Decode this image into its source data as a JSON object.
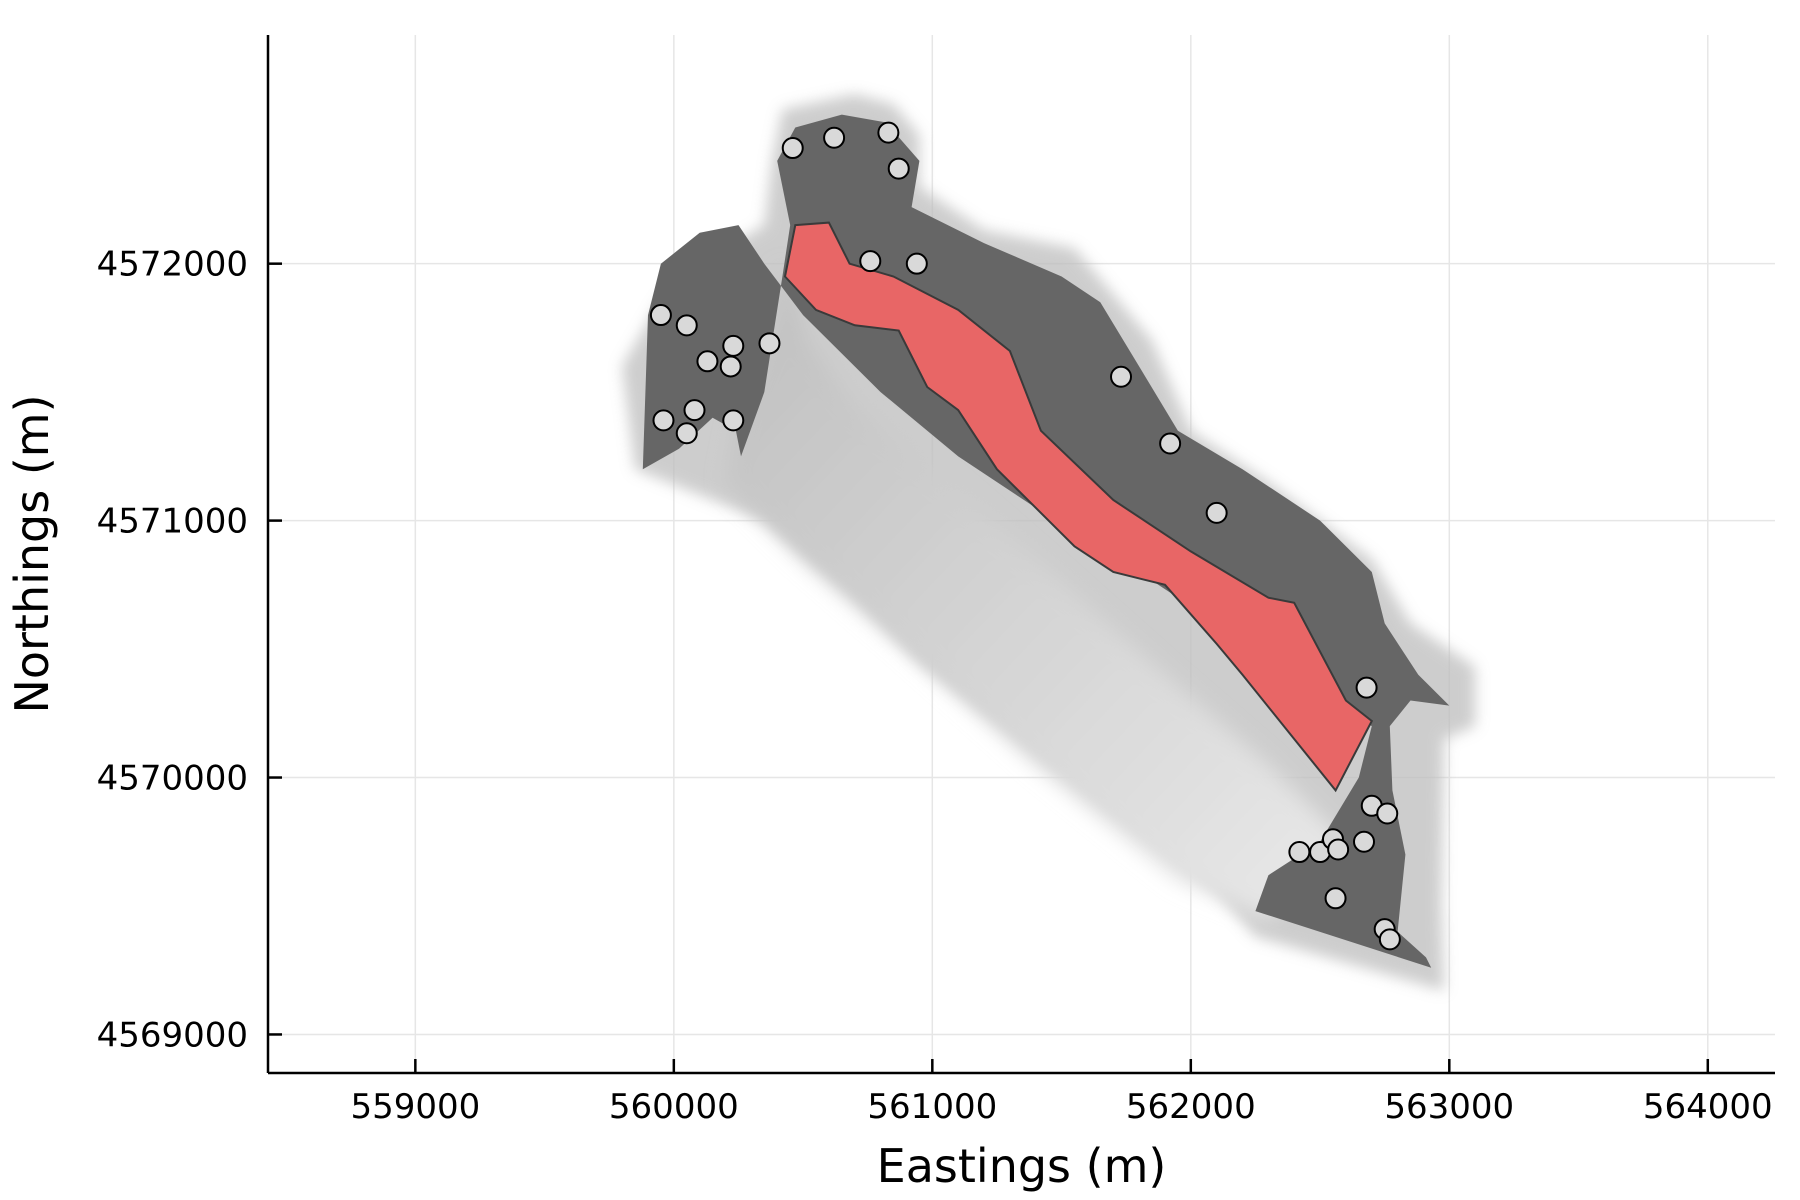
{
  "chart_data": {
    "type": "scatter",
    "title": "",
    "xlabel": "Eastings (m)",
    "ylabel": "Northings (m)",
    "xlim": [
      558430,
      564260
    ],
    "ylim": [
      4568850,
      4572890
    ],
    "xticks": [
      559000,
      560000,
      561000,
      562000,
      563000,
      564000
    ],
    "yticks": [
      4569000,
      4570000,
      4571000,
      4572000
    ],
    "xtick_labels": [
      "559000",
      "560000",
      "561000",
      "562000",
      "563000",
      "564000"
    ],
    "ytick_labels": [
      "4569000",
      "4570000",
      "4571000",
      "4572000"
    ],
    "grid": true,
    "legend": "none",
    "colors": {
      "outer_halo": "#bdbdbd",
      "region": "#666666",
      "gradient_zone": "#d6d6d6",
      "core_zone": "#e86666",
      "core_outline": "#3a3a3a",
      "wells": "#d9d9d9"
    },
    "regions": {
      "halo": [
        [
          560420,
          4572600
        ],
        [
          560700,
          4572660
        ],
        [
          560850,
          4572620
        ],
        [
          560950,
          4572500
        ],
        [
          560950,
          4572300
        ],
        [
          561200,
          4572130
        ],
        [
          561550,
          4572060
        ],
        [
          561850,
          4571700
        ],
        [
          562000,
          4571350
        ],
        [
          562300,
          4571150
        ],
        [
          562700,
          4570850
        ],
        [
          562850,
          4570600
        ],
        [
          563100,
          4570430
        ],
        [
          563100,
          4570200
        ],
        [
          562980,
          4570150
        ],
        [
          562970,
          4569500
        ],
        [
          562980,
          4569170
        ],
        [
          562250,
          4569380
        ],
        [
          562100,
          4569550
        ],
        [
          561650,
          4569900
        ],
        [
          560950,
          4570450
        ],
        [
          560700,
          4570700
        ],
        [
          560350,
          4571000
        ],
        [
          559850,
          4571200
        ],
        [
          559800,
          4571600
        ],
        [
          559950,
          4571860
        ],
        [
          560150,
          4572030
        ],
        [
          560350,
          4572150
        ],
        [
          560380,
          4572400
        ]
      ],
      "zone": [
        [
          560470,
          4572530
        ],
        [
          560650,
          4572580
        ],
        [
          560820,
          4572550
        ],
        [
          560950,
          4572400
        ],
        [
          560920,
          4572220
        ],
        [
          561200,
          4572080
        ],
        [
          561500,
          4571950
        ],
        [
          561650,
          4571850
        ],
        [
          561800,
          4571600
        ],
        [
          561950,
          4571350
        ],
        [
          562200,
          4571200
        ],
        [
          562500,
          4571000
        ],
        [
          562700,
          4570800
        ],
        [
          562750,
          4570600
        ],
        [
          562880,
          4570400
        ],
        [
          563000,
          4570280
        ],
        [
          562850,
          4570300
        ],
        [
          562770,
          4570200
        ],
        [
          562780,
          4569950
        ],
        [
          562830,
          4569700
        ],
        [
          562800,
          4569400
        ],
        [
          562910,
          4569300
        ],
        [
          562930,
          4569260
        ],
        [
          562250,
          4569480
        ],
        [
          562300,
          4569620
        ],
        [
          562500,
          4569750
        ],
        [
          562650,
          4570000
        ],
        [
          562700,
          4570200
        ],
        [
          562400,
          4570400
        ],
        [
          562100,
          4570600
        ],
        [
          561800,
          4570800
        ],
        [
          561400,
          4571050
        ],
        [
          561100,
          4571250
        ],
        [
          560800,
          4571500
        ],
        [
          560500,
          4571800
        ],
        [
          560350,
          4572000
        ],
        [
          560250,
          4572150
        ],
        [
          560100,
          4572120
        ],
        [
          559950,
          4572000
        ],
        [
          559900,
          4571800
        ],
        [
          559880,
          4571200
        ],
        [
          560020,
          4571280
        ],
        [
          560150,
          4571400
        ],
        [
          560240,
          4571350
        ],
        [
          560260,
          4571250
        ],
        [
          560350,
          4571500
        ],
        [
          560420,
          4571950
        ],
        [
          560450,
          4572150
        ],
        [
          560400,
          4572400
        ]
      ],
      "gradient": [
        [
          560420,
          4572000
        ],
        [
          560520,
          4571700
        ],
        [
          560700,
          4571450
        ],
        [
          561000,
          4571200
        ],
        [
          561400,
          4570850
        ],
        [
          561900,
          4570400
        ],
        [
          562300,
          4570050
        ],
        [
          562600,
          4569750
        ],
        [
          562300,
          4569450
        ],
        [
          561950,
          4569600
        ],
        [
          561400,
          4570050
        ],
        [
          560900,
          4570500
        ],
        [
          560500,
          4570850
        ],
        [
          560200,
          4571150
        ],
        [
          560250,
          4571400
        ],
        [
          560380,
          4571750
        ]
      ],
      "core": [
        [
          560470,
          4572150
        ],
        [
          560600,
          4572160
        ],
        [
          560680,
          4572000
        ],
        [
          560850,
          4571950
        ],
        [
          561100,
          4571820
        ],
        [
          561300,
          4571660
        ],
        [
          561420,
          4571350
        ],
        [
          561700,
          4571080
        ],
        [
          562000,
          4570880
        ],
        [
          562300,
          4570700
        ],
        [
          562400,
          4570680
        ],
        [
          562600,
          4570300
        ],
        [
          562700,
          4570220
        ],
        [
          562560,
          4569950
        ],
        [
          562400,
          4570150
        ],
        [
          562200,
          4570400
        ],
        [
          562100,
          4570520
        ],
        [
          561900,
          4570750
        ],
        [
          561700,
          4570800
        ],
        [
          561550,
          4570900
        ],
        [
          561250,
          4571200
        ],
        [
          561100,
          4571430
        ],
        [
          560980,
          4571520
        ],
        [
          560870,
          4571740
        ],
        [
          560700,
          4571760
        ],
        [
          560550,
          4571820
        ],
        [
          560430,
          4571950
        ]
      ]
    },
    "wells": {
      "x": [
        560460,
        560620,
        560830,
        560870,
        560760,
        560940,
        559950,
        560050,
        560130,
        560220,
        560230,
        560370,
        559960,
        560050,
        560080,
        560230,
        561730,
        561920,
        562100,
        562680,
        562700,
        562760,
        562420,
        562500,
        562550,
        562570,
        562670,
        562560,
        562750,
        562770
      ],
      "y": [
        4572450,
        4572490,
        4572510,
        4572370,
        4572010,
        4572000,
        4571800,
        4571760,
        4571620,
        4571600,
        4571680,
        4571690,
        4571390,
        4571340,
        4571430,
        4571390,
        4571560,
        4571300,
        4571030,
        4570350,
        4569890,
        4569860,
        4569710,
        4569710,
        4569760,
        4569720,
        4569750,
        4569530,
        4569410,
        4569370
      ]
    }
  }
}
